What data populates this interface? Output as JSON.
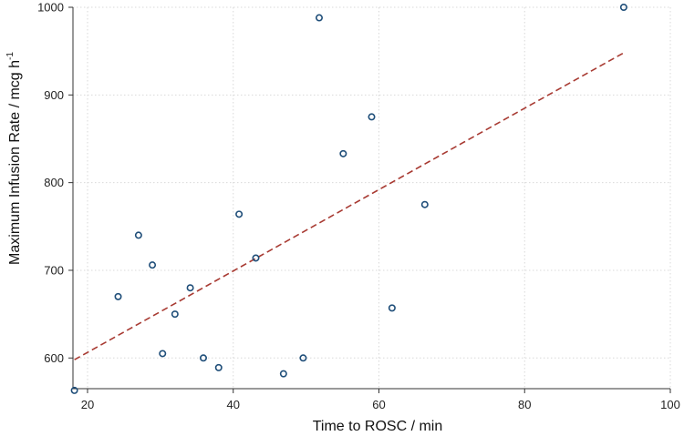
{
  "chart_data": {
    "type": "scatter",
    "xlabel": "Time to ROSC / min",
    "ylabel_main": "Maximum Infusion Rate / mcg h",
    "ylabel_sup": "-1",
    "xlim": [
      18,
      100
    ],
    "ylim": [
      565,
      1000
    ],
    "xticks": [
      20,
      40,
      60,
      80,
      100
    ],
    "yticks": [
      600,
      700,
      800,
      900,
      1000
    ],
    "grid": true,
    "points": [
      {
        "x": 18.2,
        "y": 563
      },
      {
        "x": 24.2,
        "y": 670
      },
      {
        "x": 27.0,
        "y": 740
      },
      {
        "x": 28.9,
        "y": 706
      },
      {
        "x": 30.3,
        "y": 605
      },
      {
        "x": 32.0,
        "y": 650
      },
      {
        "x": 34.1,
        "y": 680
      },
      {
        "x": 35.9,
        "y": 600
      },
      {
        "x": 38.0,
        "y": 589
      },
      {
        "x": 40.8,
        "y": 764
      },
      {
        "x": 43.1,
        "y": 714
      },
      {
        "x": 46.9,
        "y": 582
      },
      {
        "x": 49.6,
        "y": 600
      },
      {
        "x": 51.8,
        "y": 988
      },
      {
        "x": 55.1,
        "y": 833
      },
      {
        "x": 59.0,
        "y": 875
      },
      {
        "x": 61.8,
        "y": 657
      },
      {
        "x": 66.3,
        "y": 775
      },
      {
        "x": 93.6,
        "y": 1000
      }
    ],
    "fit_line": {
      "x": [
        18.2,
        93.6
      ],
      "y": [
        598,
        948
      ]
    },
    "point_color": "#1f4e79",
    "fit_color": "#a83a32"
  }
}
